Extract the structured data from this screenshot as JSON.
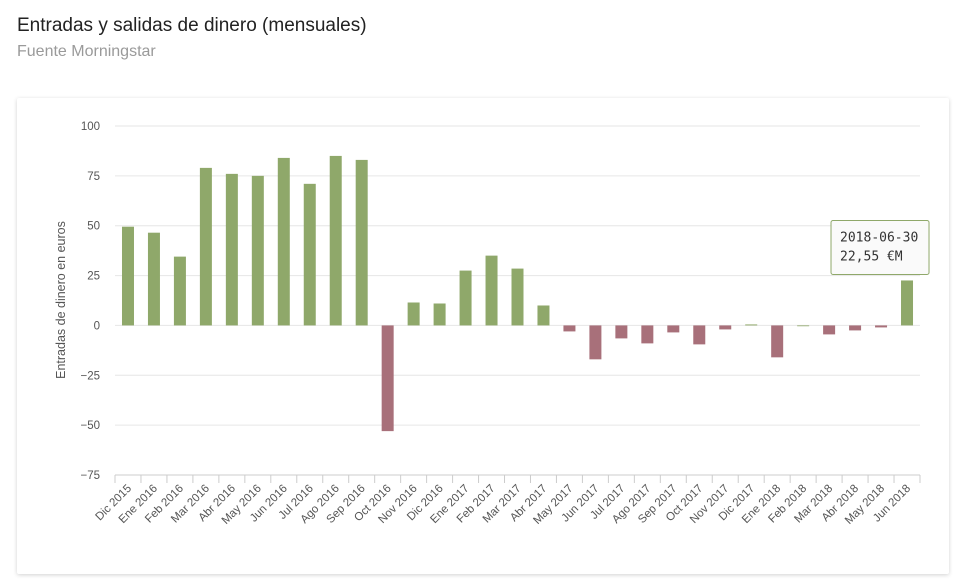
{
  "header": {
    "title": "Entradas y salidas de dinero (mensuales)",
    "subtitle": "Fuente Morningstar"
  },
  "chart_data": {
    "type": "bar",
    "title": "Entradas y salidas de dinero (mensuales)",
    "subtitle": "Fuente Morningstar",
    "ylabel": "Entradas de dinero en euros",
    "xlabel": "",
    "ylim": [
      -75,
      100
    ],
    "yticks": [
      100,
      75,
      50,
      25,
      0,
      -25,
      -50,
      -75
    ],
    "ytick_labels": [
      "100",
      "75",
      "50",
      "25",
      "0",
      "−25",
      "−50",
      "−75"
    ],
    "grid": true,
    "categories": [
      "Dic 2015",
      "Ene 2016",
      "Feb 2016",
      "Mar 2016",
      "Abr 2016",
      "May 2016",
      "Jun 2016",
      "Jul 2016",
      "Ago 2016",
      "Sep 2016",
      "Oct 2016",
      "Nov 2016",
      "Dic 2016",
      "Ene 2017",
      "Feb 2017",
      "Mar 2017",
      "Abr 2017",
      "May 2017",
      "Jun 2017",
      "Jul 2017",
      "Ago 2017",
      "Sep 2017",
      "Oct 2017",
      "Nov 2017",
      "Dic 2017",
      "Ene 2018",
      "Feb 2018",
      "Mar 2018",
      "Abr 2018",
      "May 2018",
      "Jun 2018"
    ],
    "values": [
      49.5,
      46.5,
      34.5,
      79,
      76,
      75,
      84,
      71,
      85,
      83,
      -53,
      11.5,
      11,
      27.5,
      35,
      28.5,
      10,
      -3,
      -17,
      -6.5,
      -9,
      -3.5,
      -9.5,
      -2,
      0.5,
      -16,
      0,
      -4.5,
      -2.5,
      -1,
      22.55
    ],
    "colors": {
      "positive": "#8fa86a",
      "negative": "#a8707a",
      "grid": "#e6e6e6",
      "axis": "#cccccc"
    },
    "tooltip": {
      "category_index": 30,
      "line1": "2018-06-30",
      "line2": "22,55 €M"
    }
  }
}
